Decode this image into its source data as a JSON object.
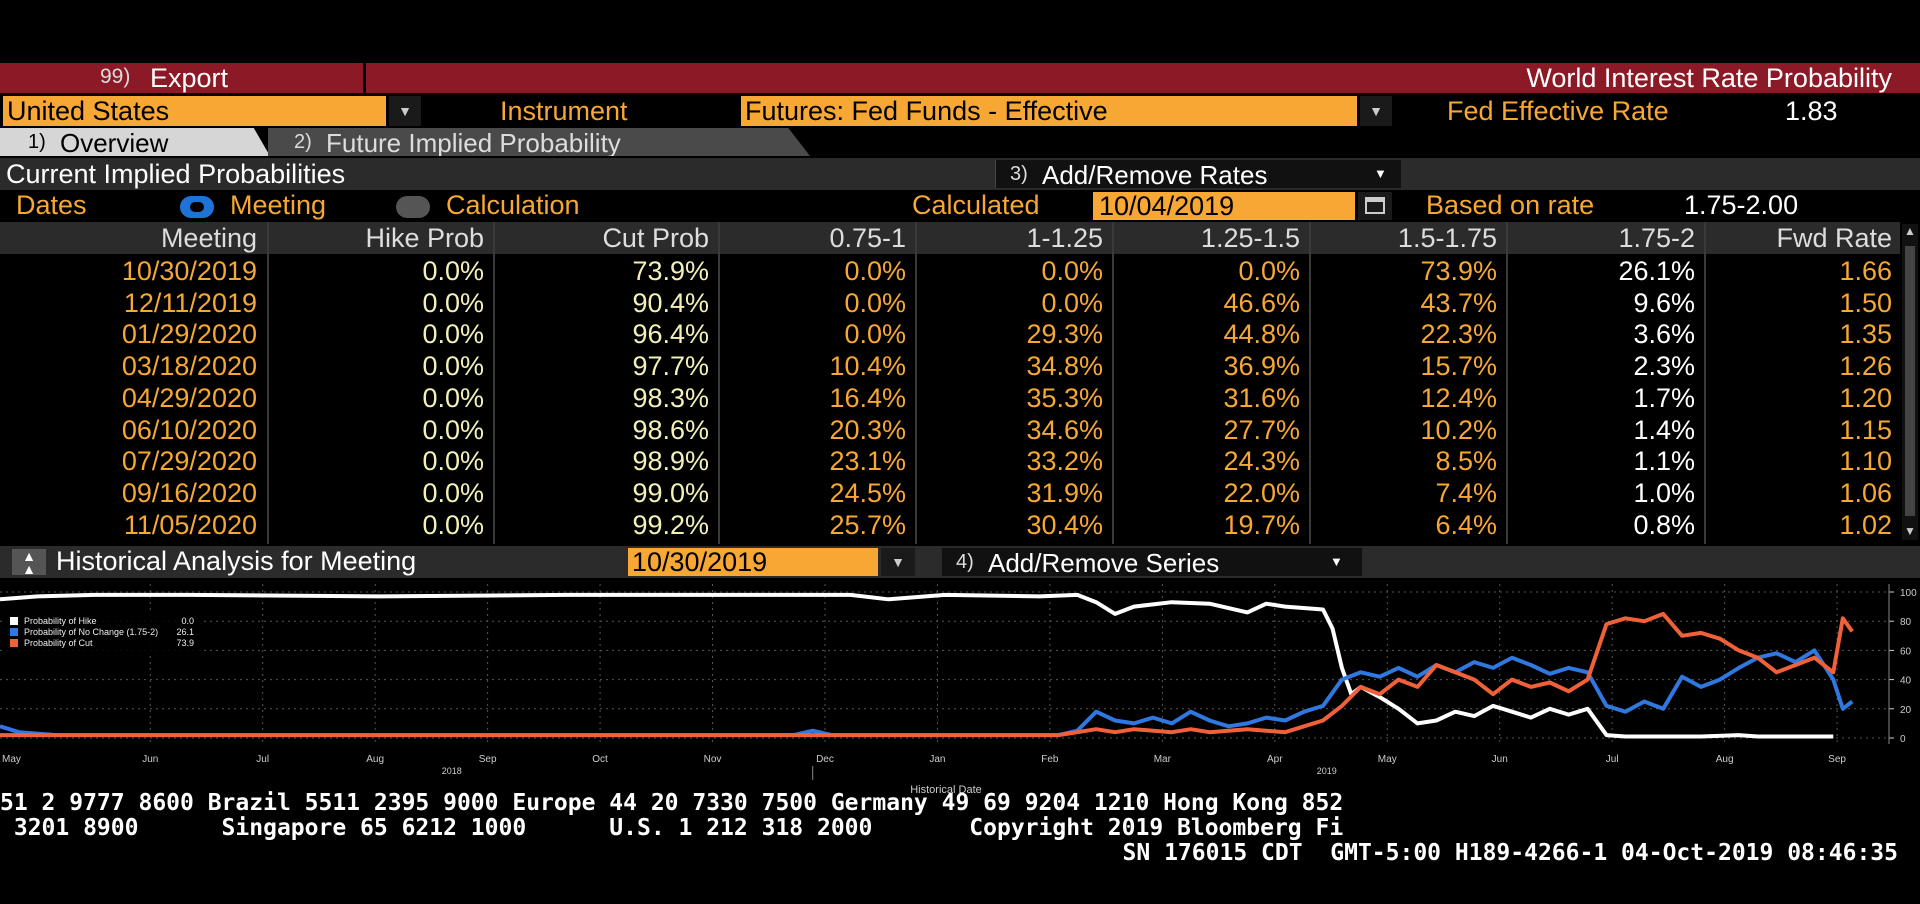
{
  "topbar": {
    "export_label": "Export",
    "export_num": "99)",
    "title": "World Interest Rate Probability"
  },
  "country": {
    "value": "United States"
  },
  "instrument": {
    "label": "Instrument",
    "value": "Futures: Fed Funds - Effective"
  },
  "fed_rate": {
    "label": "Fed Effective Rate",
    "value": "1.83"
  },
  "tabs": [
    {
      "num": "1)",
      "label": "Overview"
    },
    {
      "num": "2)",
      "label": "Future Implied Probability"
    }
  ],
  "section": {
    "title": "Current Implied Probabilities",
    "add_num": "3)",
    "add_label": "Add/Remove Rates"
  },
  "dates_row": {
    "dates_label": "Dates",
    "meeting_label": "Meeting",
    "calc_label": "Calculation",
    "calculated_label": "Calculated",
    "calculated_value": "10/04/2019",
    "based_label": "Based on rate",
    "based_value": "1.75-2.00"
  },
  "table": {
    "headers": [
      "Meeting",
      "Hike Prob",
      "Cut Prob",
      "0.75-1",
      "1-1.25",
      "1.25-1.5",
      "1.5-1.75",
      "1.75-2",
      "Fwd Rate"
    ],
    "rows": [
      [
        "10/30/2019",
        "0.0%",
        "73.9%",
        "0.0%",
        "0.0%",
        "0.0%",
        "73.9%",
        "26.1%",
        "1.66"
      ],
      [
        "12/11/2019",
        "0.0%",
        "90.4%",
        "0.0%",
        "0.0%",
        "46.6%",
        "43.7%",
        "9.6%",
        "1.50"
      ],
      [
        "01/29/2020",
        "0.0%",
        "96.4%",
        "0.0%",
        "29.3%",
        "44.8%",
        "22.3%",
        "3.6%",
        "1.35"
      ],
      [
        "03/18/2020",
        "0.0%",
        "97.7%",
        "10.4%",
        "34.8%",
        "36.9%",
        "15.7%",
        "2.3%",
        "1.26"
      ],
      [
        "04/29/2020",
        "0.0%",
        "98.3%",
        "16.4%",
        "35.3%",
        "31.6%",
        "12.4%",
        "1.7%",
        "1.20"
      ],
      [
        "06/10/2020",
        "0.0%",
        "98.6%",
        "20.3%",
        "34.6%",
        "27.7%",
        "10.2%",
        "1.4%",
        "1.15"
      ],
      [
        "07/29/2020",
        "0.0%",
        "98.9%",
        "23.1%",
        "33.2%",
        "24.3%",
        "8.5%",
        "1.1%",
        "1.10"
      ],
      [
        "09/16/2020",
        "0.0%",
        "99.0%",
        "24.5%",
        "31.9%",
        "22.0%",
        "7.4%",
        "1.0%",
        "1.06"
      ],
      [
        "11/05/2020",
        "0.0%",
        "99.2%",
        "25.7%",
        "30.4%",
        "19.7%",
        "6.4%",
        "0.8%",
        "1.02"
      ]
    ]
  },
  "historical": {
    "title": "Historical Analysis for Meeting",
    "meeting_value": "10/30/2019",
    "add_num": "4)",
    "add_label": "Add/Remove Series"
  },
  "chart_data": {
    "type": "line",
    "xlabel": "Historical Date",
    "x_ticks": [
      "May",
      "Jun",
      "Jul",
      "Aug",
      "Sep",
      "Oct",
      "Nov",
      "Dec",
      "Jan",
      "Feb",
      "Mar",
      "Apr",
      "May",
      "Jun",
      "Jul",
      "Aug",
      "Sep"
    ],
    "year_labels": [
      "2018",
      "2019"
    ],
    "y_ticks": [
      "0",
      "20",
      "40",
      "60",
      "80",
      "100"
    ],
    "ylim": [
      0,
      100
    ],
    "legend": [
      {
        "name": "Probability of Hike",
        "value": "0.0",
        "color": "#ffffff"
      },
      {
        "name": "Probability of No Change (1.75-2)",
        "value": "26.1",
        "color": "#2f78e0"
      },
      {
        "name": "Probability of Cut",
        "value": "73.9",
        "color": "#f0613a"
      }
    ],
    "series": [
      {
        "name": "Probability of Hike",
        "color": "#ffffff",
        "points": [
          [
            0,
            95
          ],
          [
            2,
            97
          ],
          [
            5,
            98
          ],
          [
            10,
            98
          ],
          [
            20,
            97
          ],
          [
            30,
            98
          ],
          [
            40,
            98
          ],
          [
            45,
            98
          ],
          [
            47,
            95
          ],
          [
            50,
            98
          ],
          [
            55,
            97
          ],
          [
            57,
            98
          ],
          [
            58,
            93
          ],
          [
            59,
            85
          ],
          [
            60,
            90
          ],
          [
            62,
            93
          ],
          [
            64,
            92
          ],
          [
            66,
            86
          ],
          [
            67,
            92
          ],
          [
            68,
            90
          ],
          [
            70,
            88
          ],
          [
            70.5,
            75
          ],
          [
            71,
            48
          ],
          [
            71.5,
            30
          ],
          [
            72,
            35
          ],
          [
            73,
            28
          ],
          [
            74,
            20
          ],
          [
            75,
            10
          ],
          [
            76,
            12
          ],
          [
            77,
            18
          ],
          [
            78,
            15
          ],
          [
            79,
            22
          ],
          [
            80,
            18
          ],
          [
            81,
            14
          ],
          [
            82,
            20
          ],
          [
            83,
            16
          ],
          [
            84,
            20
          ],
          [
            85,
            2
          ],
          [
            86,
            1
          ],
          [
            90,
            1
          ],
          [
            92,
            2
          ],
          [
            93,
            1
          ],
          [
            97,
            1
          ]
        ]
      },
      {
        "name": "Probability of No Change (1.75-2)",
        "color": "#2f78e0",
        "points": [
          [
            0,
            8
          ],
          [
            1,
            4
          ],
          [
            3,
            2
          ],
          [
            20,
            2
          ],
          [
            42,
            2
          ],
          [
            43,
            5
          ],
          [
            44,
            2
          ],
          [
            56,
            2
          ],
          [
            57,
            5
          ],
          [
            58,
            18
          ],
          [
            59,
            12
          ],
          [
            60,
            10
          ],
          [
            61,
            14
          ],
          [
            62,
            10
          ],
          [
            63,
            18
          ],
          [
            64,
            12
          ],
          [
            65,
            8
          ],
          [
            66,
            10
          ],
          [
            67,
            14
          ],
          [
            68,
            12
          ],
          [
            69,
            18
          ],
          [
            70,
            22
          ],
          [
            71,
            40
          ],
          [
            72,
            45
          ],
          [
            73,
            42
          ],
          [
            74,
            48
          ],
          [
            75,
            42
          ],
          [
            76,
            50
          ],
          [
            77,
            45
          ],
          [
            78,
            52
          ],
          [
            79,
            48
          ],
          [
            80,
            55
          ],
          [
            81,
            50
          ],
          [
            82,
            44
          ],
          [
            83,
            48
          ],
          [
            84,
            45
          ],
          [
            85,
            22
          ],
          [
            86,
            18
          ],
          [
            87,
            25
          ],
          [
            88,
            20
          ],
          [
            89,
            42
          ],
          [
            90,
            35
          ],
          [
            91,
            40
          ],
          [
            92,
            48
          ],
          [
            93,
            55
          ],
          [
            94,
            58
          ],
          [
            95,
            52
          ],
          [
            96,
            60
          ],
          [
            97,
            40
          ],
          [
            97.5,
            20
          ],
          [
            98,
            25
          ]
        ]
      },
      {
        "name": "Probability of Cut",
        "color": "#f0613a",
        "points": [
          [
            0,
            2
          ],
          [
            10,
            2
          ],
          [
            20,
            2
          ],
          [
            40,
            2
          ],
          [
            56,
            2
          ],
          [
            57,
            4
          ],
          [
            58,
            6
          ],
          [
            59,
            4
          ],
          [
            60,
            6
          ],
          [
            62,
            4
          ],
          [
            63,
            6
          ],
          [
            64,
            4
          ],
          [
            66,
            6
          ],
          [
            68,
            4
          ],
          [
            69,
            8
          ],
          [
            70,
            12
          ],
          [
            71,
            22
          ],
          [
            72,
            35
          ],
          [
            73,
            30
          ],
          [
            74,
            40
          ],
          [
            75,
            35
          ],
          [
            76,
            50
          ],
          [
            77,
            45
          ],
          [
            78,
            40
          ],
          [
            79,
            30
          ],
          [
            80,
            40
          ],
          [
            81,
            35
          ],
          [
            82,
            38
          ],
          [
            83,
            32
          ],
          [
            84,
            40
          ],
          [
            85,
            78
          ],
          [
            86,
            82
          ],
          [
            87,
            80
          ],
          [
            88,
            85
          ],
          [
            89,
            70
          ],
          [
            90,
            72
          ],
          [
            91,
            68
          ],
          [
            92,
            60
          ],
          [
            93,
            55
          ],
          [
            94,
            45
          ],
          [
            95,
            50
          ],
          [
            96,
            55
          ],
          [
            97,
            45
          ],
          [
            97.5,
            82
          ],
          [
            98,
            73
          ]
        ]
      }
    ]
  },
  "footer": {
    "line1": "51 2 9777 8600 Brazil 5511 2395 9000 Europe 44 20 7330 7500 Germany 49 69 9204 1210 Hong Kong 852",
    "line2": " 3201 8900      Singapore 65 6212 1000      U.S. 1 212 318 2000       Copyright 2019 Bloomberg Fi",
    "line3": "SN 176015 CDT  GMT-5:00 H189-4266-1 04-Oct-2019 08:46:35"
  }
}
